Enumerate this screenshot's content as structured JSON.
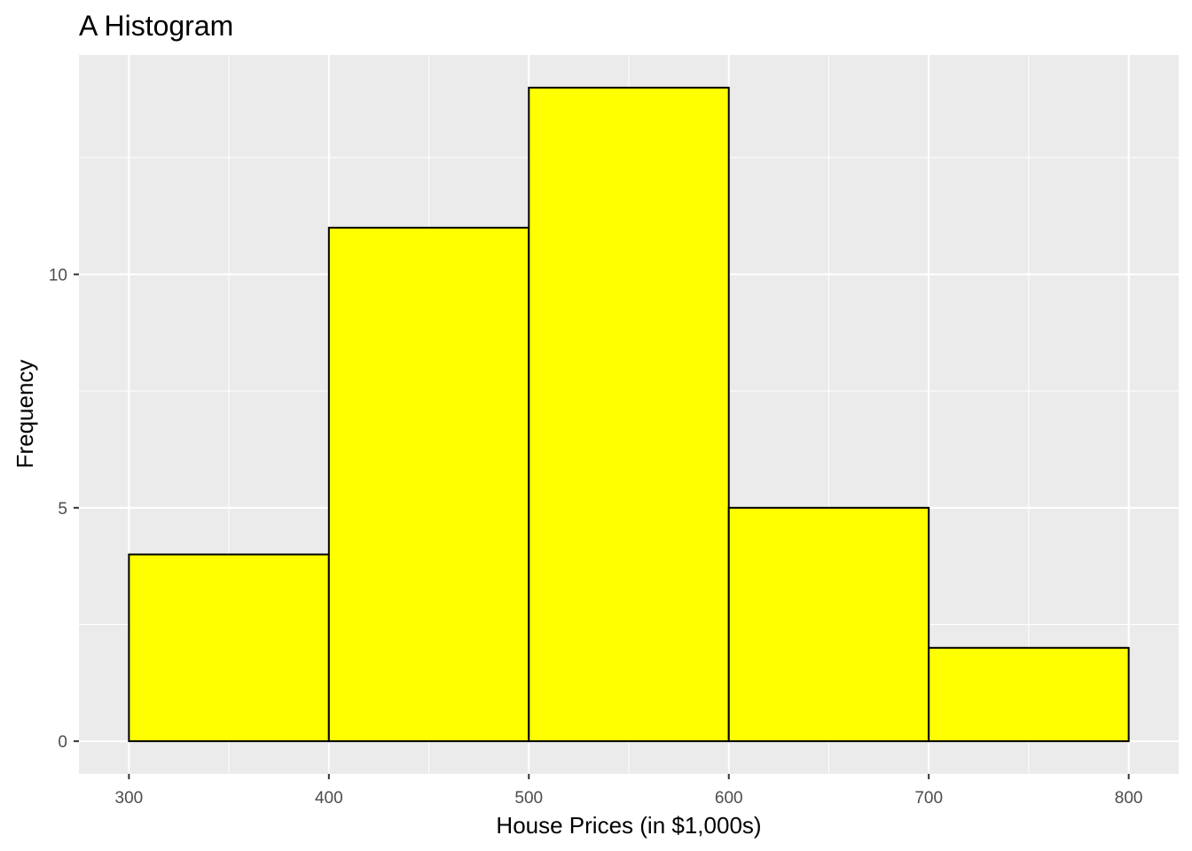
{
  "chart_data": {
    "type": "bar",
    "title": "A Histogram",
    "xlabel": "House Prices (in $1,000s)",
    "ylabel": "Frequency",
    "bins": [
      {
        "start": 300,
        "end": 400,
        "count": 4
      },
      {
        "start": 400,
        "end": 500,
        "count": 11
      },
      {
        "start": 500,
        "end": 600,
        "count": 14
      },
      {
        "start": 600,
        "end": 700,
        "count": 5
      },
      {
        "start": 700,
        "end": 800,
        "count": 2
      }
    ],
    "xlim": [
      275,
      825
    ],
    "ylim": [
      -0.7,
      14.7
    ],
    "x_ticks": [
      300,
      400,
      500,
      600,
      700,
      800
    ],
    "x_tick_labels": [
      "300",
      "400",
      "500",
      "600",
      "700",
      "800"
    ],
    "y_ticks": [
      0,
      5,
      10
    ],
    "y_tick_labels": [
      "0",
      "5",
      "10"
    ],
    "x_minor_ticks": [
      350,
      450,
      550,
      650,
      750
    ],
    "y_minor_ticks": [
      2.5,
      7.5,
      12.5
    ],
    "grid": true,
    "bar_fill": "#FFFF00",
    "bar_outline": "#000000",
    "panel_background": "#EBEBEB",
    "grid_color": "#FFFFFF"
  }
}
